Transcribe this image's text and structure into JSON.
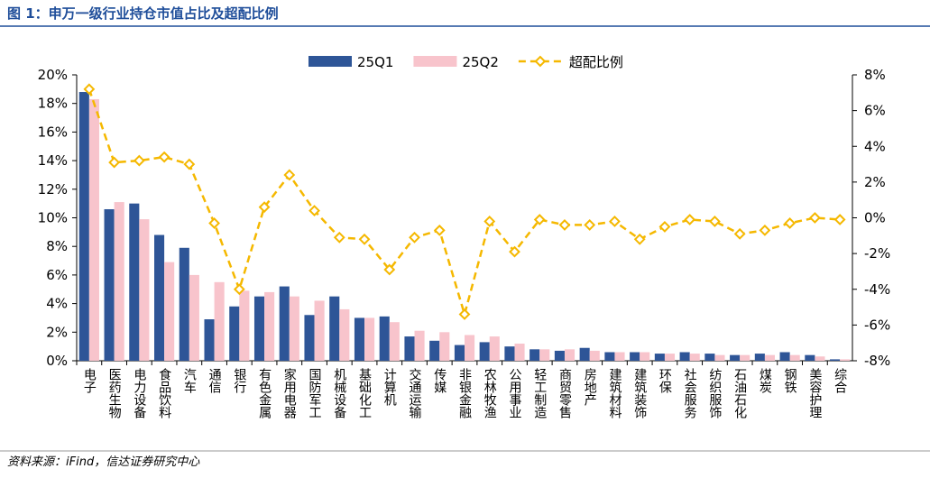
{
  "chart_data": {
    "type": "bar",
    "title": "图 1：申万一级行业持仓市值占比及超配比例",
    "source": "资料来源：iFind，信达证券研究中心",
    "categories": [
      "电子",
      "医药生物",
      "电力设备",
      "食品饮料",
      "汽车",
      "通信",
      "银行",
      "有色金属",
      "家用电器",
      "国防军工",
      "机械设备",
      "基础化工",
      "计算机",
      "交通运输",
      "传媒",
      "非银金融",
      "农林牧渔",
      "公用事业",
      "轻工制造",
      "商贸零售",
      "房地产",
      "建筑材料",
      "建筑装饰",
      "环保",
      "社会服务",
      "纺织服饰",
      "石油石化",
      "煤炭",
      "钢铁",
      "美容护理",
      "综合"
    ],
    "series": [
      {
        "name": "25Q1",
        "type": "bar",
        "color": "#2e5597",
        "values": [
          18.8,
          10.6,
          11.0,
          8.8,
          7.9,
          2.9,
          3.8,
          4.5,
          5.2,
          3.2,
          4.5,
          3.0,
          3.1,
          1.7,
          1.4,
          1.1,
          1.3,
          1.0,
          0.8,
          0.7,
          0.9,
          0.6,
          0.6,
          0.5,
          0.6,
          0.5,
          0.4,
          0.5,
          0.6,
          0.4,
          0.1
        ]
      },
      {
        "name": "25Q2",
        "type": "bar",
        "color": "#f8c4cc",
        "values": [
          18.3,
          11.1,
          9.9,
          6.9,
          6.0,
          5.5,
          4.9,
          4.8,
          4.5,
          4.2,
          3.6,
          3.0,
          2.7,
          2.1,
          2.0,
          1.8,
          1.7,
          1.2,
          0.8,
          0.8,
          0.7,
          0.6,
          0.6,
          0.5,
          0.5,
          0.4,
          0.4,
          0.4,
          0.4,
          0.3,
          0.1
        ]
      },
      {
        "name": "超配比例",
        "type": "line",
        "axis": "y2",
        "color": "#f5b800",
        "values": [
          7.2,
          3.1,
          3.2,
          3.4,
          3.0,
          -0.3,
          -4.0,
          0.6,
          2.4,
          0.4,
          -1.1,
          -1.2,
          -2.9,
          -1.1,
          -0.7,
          -5.4,
          -0.2,
          -1.9,
          -0.1,
          -0.4,
          -0.4,
          -0.2,
          -1.2,
          -0.5,
          -0.1,
          -0.2,
          -0.9,
          -0.7,
          -0.3,
          0.0,
          -0.1
        ]
      }
    ],
    "ylim": [
      0,
      20
    ],
    "yticks": [
      {
        "value": 0,
        "label": "0%"
      },
      {
        "value": 2,
        "label": "2%"
      },
      {
        "value": 4,
        "label": "4%"
      },
      {
        "value": 6,
        "label": "6%"
      },
      {
        "value": 8,
        "label": "8%"
      },
      {
        "value": 10,
        "label": "10%"
      },
      {
        "value": 12,
        "label": "12%"
      },
      {
        "value": 14,
        "label": "14%"
      },
      {
        "value": 16,
        "label": "16%"
      },
      {
        "value": 18,
        "label": "18%"
      },
      {
        "value": 20,
        "label": "20%"
      }
    ],
    "y2lim": [
      -8,
      8
    ],
    "y2ticks": [
      {
        "value": -8,
        "label": "-8%"
      },
      {
        "value": -6,
        "label": "-6%"
      },
      {
        "value": -4,
        "label": "-4%"
      },
      {
        "value": -2,
        "label": "-2%"
      },
      {
        "value": 0,
        "label": "0%"
      },
      {
        "value": 2,
        "label": "2%"
      },
      {
        "value": 4,
        "label": "4%"
      },
      {
        "value": 6,
        "label": "6%"
      },
      {
        "value": 8,
        "label": "8%"
      }
    ],
    "legend": "top"
  }
}
